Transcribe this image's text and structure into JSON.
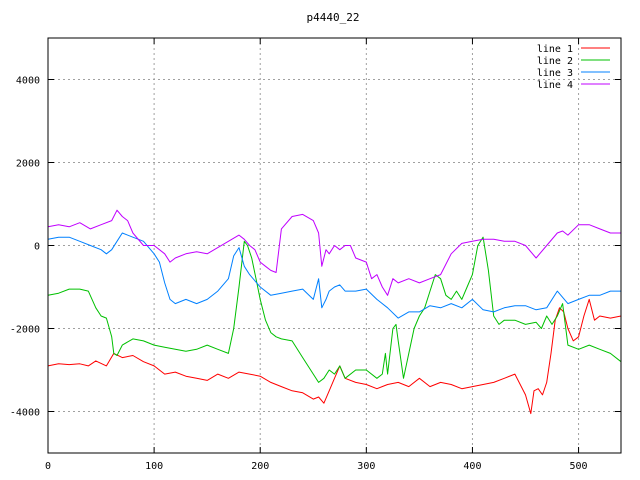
{
  "chart_data": {
    "type": "line",
    "title": "p4440_22",
    "xlabel": "",
    "ylabel": "",
    "xlim": [
      0,
      540
    ],
    "ylim": [
      -5000,
      5000
    ],
    "x_ticks": [
      0,
      100,
      200,
      300,
      400,
      500
    ],
    "y_ticks": [
      -4000,
      -2000,
      0,
      2000,
      4000
    ],
    "grid": true,
    "legend_position": "top-right",
    "series": [
      {
        "name": "line 1",
        "color": "#ff0000",
        "x": [
          0,
          10,
          20,
          30,
          38,
          45,
          55,
          62,
          70,
          80,
          90,
          100,
          110,
          120,
          130,
          140,
          150,
          160,
          170,
          180,
          190,
          200,
          210,
          220,
          230,
          240,
          250,
          255,
          260,
          265,
          270,
          275,
          280,
          290,
          300,
          310,
          320,
          330,
          340,
          350,
          360,
          370,
          380,
          390,
          400,
          410,
          420,
          430,
          440,
          450,
          455,
          458,
          462,
          466,
          470,
          474,
          478,
          482,
          486,
          490,
          495,
          500,
          505,
          510,
          515,
          520,
          530,
          540
        ],
        "y": [
          -2900,
          -2850,
          -2870,
          -2850,
          -2900,
          -2780,
          -2900,
          -2600,
          -2700,
          -2650,
          -2800,
          -2900,
          -3100,
          -3050,
          -3150,
          -3200,
          -3250,
          -3100,
          -3200,
          -3050,
          -3100,
          -3150,
          -3300,
          -3400,
          -3500,
          -3550,
          -3700,
          -3650,
          -3800,
          -3500,
          -3200,
          -2900,
          -3200,
          -3300,
          -3350,
          -3450,
          -3350,
          -3300,
          -3400,
          -3200,
          -3400,
          -3300,
          -3350,
          -3450,
          -3400,
          -3350,
          -3300,
          -3200,
          -3100,
          -3600,
          -4050,
          -3500,
          -3450,
          -3600,
          -3300,
          -2600,
          -1800,
          -1500,
          -1600,
          -2000,
          -2300,
          -2200,
          -1700,
          -1300,
          -1800,
          -1700,
          -1750,
          -1700
        ]
      },
      {
        "name": "line 2",
        "color": "#00c000",
        "x": [
          0,
          10,
          20,
          30,
          38,
          45,
          50,
          55,
          60,
          62,
          65,
          70,
          80,
          90,
          100,
          110,
          120,
          130,
          140,
          150,
          160,
          170,
          175,
          180,
          185,
          188,
          192,
          196,
          200,
          205,
          210,
          215,
          220,
          230,
          240,
          250,
          255,
          260,
          265,
          270,
          275,
          280,
          290,
          300,
          310,
          315,
          318,
          320,
          325,
          328,
          330,
          335,
          340,
          345,
          350,
          355,
          360,
          365,
          370,
          375,
          380,
          385,
          390,
          395,
          400,
          405,
          410,
          415,
          420,
          425,
          430,
          440,
          450,
          460,
          465,
          470,
          475,
          480,
          485,
          490,
          500,
          510,
          520,
          530,
          540
        ],
        "y": [
          -1200,
          -1150,
          -1050,
          -1050,
          -1100,
          -1500,
          -1700,
          -1750,
          -2200,
          -2600,
          -2650,
          -2400,
          -2250,
          -2300,
          -2400,
          -2450,
          -2500,
          -2550,
          -2500,
          -2400,
          -2500,
          -2600,
          -2000,
          -1000,
          100,
          0,
          -300,
          -800,
          -1300,
          -1800,
          -2100,
          -2200,
          -2250,
          -2300,
          -2700,
          -3100,
          -3300,
          -3200,
          -3000,
          -3100,
          -2900,
          -3200,
          -3000,
          -3000,
          -3200,
          -3100,
          -2600,
          -3100,
          -2000,
          -1900,
          -2300,
          -3200,
          -2600,
          -2000,
          -1700,
          -1500,
          -1100,
          -700,
          -800,
          -1200,
          -1300,
          -1100,
          -1300,
          -1000,
          -700,
          0,
          200,
          -600,
          -1700,
          -1900,
          -1800,
          -1800,
          -1900,
          -1850,
          -2000,
          -1700,
          -1900,
          -1700,
          -1400,
          -2400,
          -2500,
          -2400,
          -2500,
          -2600,
          -2800
        ]
      },
      {
        "name": "line 3",
        "color": "#0080ff",
        "x": [
          0,
          10,
          20,
          30,
          40,
          50,
          55,
          60,
          65,
          70,
          80,
          90,
          100,
          105,
          110,
          115,
          120,
          130,
          140,
          150,
          160,
          170,
          175,
          180,
          185,
          190,
          200,
          210,
          220,
          230,
          240,
          250,
          255,
          258,
          262,
          265,
          270,
          275,
          280,
          290,
          300,
          310,
          320,
          330,
          340,
          350,
          360,
          370,
          380,
          390,
          400,
          410,
          420,
          430,
          440,
          450,
          460,
          470,
          480,
          490,
          500,
          510,
          520,
          530,
          540
        ],
        "y": [
          150,
          200,
          200,
          100,
          0,
          -100,
          -200,
          -100,
          100,
          300,
          200,
          100,
          -200,
          -400,
          -900,
          -1300,
          -1400,
          -1300,
          -1400,
          -1300,
          -1100,
          -800,
          -250,
          -50,
          -500,
          -700,
          -1000,
          -1200,
          -1150,
          -1100,
          -1050,
          -1300,
          -800,
          -1500,
          -1300,
          -1100,
          -1000,
          -950,
          -1100,
          -1100,
          -1050,
          -1300,
          -1500,
          -1750,
          -1600,
          -1600,
          -1450,
          -1500,
          -1400,
          -1500,
          -1300,
          -1550,
          -1600,
          -1500,
          -1450,
          -1450,
          -1550,
          -1500,
          -1100,
          -1400,
          -1300,
          -1200,
          -1200,
          -1100,
          -1100
        ]
      },
      {
        "name": "line 4",
        "color": "#c000ff",
        "x": [
          0,
          10,
          20,
          30,
          40,
          50,
          60,
          65,
          70,
          75,
          80,
          90,
          100,
          110,
          115,
          120,
          130,
          140,
          150,
          160,
          170,
          180,
          185,
          190,
          195,
          200,
          205,
          210,
          215,
          220,
          230,
          240,
          250,
          255,
          258,
          262,
          265,
          270,
          275,
          280,
          285,
          290,
          300,
          305,
          310,
          315,
          320,
          325,
          330,
          340,
          350,
          360,
          370,
          380,
          390,
          400,
          410,
          420,
          430,
          440,
          450,
          460,
          470,
          480,
          485,
          490,
          500,
          510,
          520,
          530,
          540
        ],
        "y": [
          450,
          500,
          450,
          550,
          400,
          500,
          600,
          850,
          700,
          600,
          300,
          0,
          0,
          -200,
          -400,
          -300,
          -200,
          -150,
          -200,
          -50,
          100,
          250,
          150,
          0,
          -100,
          -400,
          -500,
          -600,
          -650,
          400,
          700,
          750,
          600,
          300,
          -500,
          -100,
          -200,
          0,
          -100,
          0,
          0,
          -300,
          -400,
          -800,
          -700,
          -1000,
          -1200,
          -800,
          -900,
          -800,
          -900,
          -800,
          -700,
          -200,
          50,
          100,
          150,
          150,
          100,
          100,
          0,
          -300,
          0,
          300,
          350,
          250,
          500,
          500,
          400,
          300,
          300
        ]
      }
    ]
  }
}
